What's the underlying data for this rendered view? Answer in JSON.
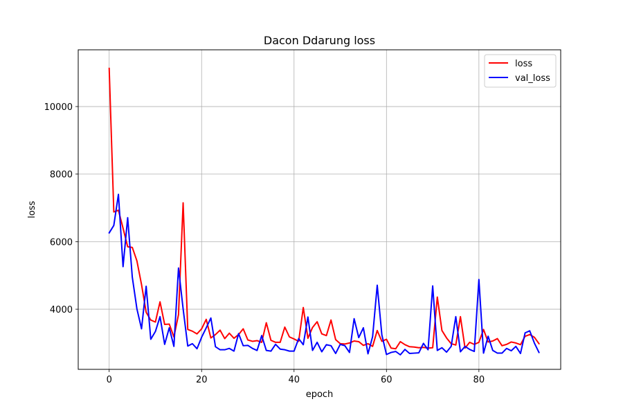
{
  "chart_data": {
    "type": "line",
    "title": "Dacon Ddarung loss",
    "xlabel": "epoch",
    "ylabel": "loss",
    "xlim": [
      -6.7,
      97.7
    ],
    "ylim": [
      2220,
      11680
    ],
    "xticks": [
      0,
      20,
      40,
      60,
      80
    ],
    "yticks": [
      4000,
      6000,
      8000,
      10000
    ],
    "grid": true,
    "legend_position": "top-right",
    "series": [
      {
        "name": "loss",
        "color": "#ff0000",
        "x": [
          0,
          1,
          2,
          3,
          4,
          5,
          6,
          7,
          8,
          9,
          10,
          11,
          12,
          13,
          14,
          15,
          16,
          17,
          18,
          19,
          20,
          21,
          22,
          23,
          24,
          25,
          26,
          27,
          28,
          29,
          30,
          31,
          32,
          33,
          34,
          35,
          36,
          37,
          38,
          39,
          40,
          41,
          42,
          43,
          44,
          45,
          46,
          47,
          48,
          49,
          50,
          51,
          52,
          53,
          54,
          55,
          56,
          57,
          58,
          59,
          60,
          61,
          62,
          63,
          64,
          65,
          66,
          67,
          68,
          69,
          70,
          71,
          72,
          73,
          74,
          75,
          76,
          77,
          78,
          79,
          80,
          81,
          82,
          83,
          84,
          85,
          86,
          87,
          88,
          89,
          90,
          91,
          92,
          93
        ],
        "values": [
          11130,
          6880,
          6930,
          6400,
          5850,
          5830,
          5430,
          4730,
          3910,
          3680,
          3620,
          4220,
          3550,
          3560,
          3180,
          3840,
          7150,
          3400,
          3350,
          3270,
          3420,
          3700,
          3150,
          3250,
          3380,
          3130,
          3290,
          3140,
          3250,
          3420,
          3090,
          3050,
          3070,
          3020,
          3600,
          3080,
          3020,
          3020,
          3470,
          3180,
          3120,
          3050,
          4050,
          3140,
          3460,
          3630,
          3270,
          3220,
          3680,
          3100,
          2980,
          2970,
          3000,
          3060,
          3040,
          2930,
          2980,
          2900,
          3370,
          3050,
          3110,
          2850,
          2830,
          3040,
          2950,
          2890,
          2880,
          2860,
          2870,
          2850,
          2860,
          4360,
          3370,
          3150,
          2980,
          2940,
          3780,
          2850,
          3020,
          2960,
          3020,
          3400,
          3030,
          3060,
          3130,
          2920,
          2960,
          3030,
          3000,
          2950,
          3200,
          3250,
          3170,
          2980
        ]
      },
      {
        "name": "val_loss",
        "color": "#0000ff",
        "x": [
          0,
          1,
          2,
          3,
          4,
          5,
          6,
          7,
          8,
          9,
          10,
          11,
          12,
          13,
          14,
          15,
          16,
          17,
          18,
          19,
          20,
          21,
          22,
          23,
          24,
          25,
          26,
          27,
          28,
          29,
          30,
          31,
          32,
          33,
          34,
          35,
          36,
          37,
          38,
          39,
          40,
          41,
          42,
          43,
          44,
          45,
          46,
          47,
          48,
          49,
          50,
          51,
          52,
          53,
          54,
          55,
          56,
          57,
          58,
          59,
          60,
          61,
          62,
          63,
          64,
          65,
          66,
          67,
          68,
          69,
          70,
          71,
          72,
          73,
          74,
          75,
          76,
          77,
          78,
          79,
          80,
          81,
          82,
          83,
          84,
          85,
          86,
          87,
          88,
          89,
          90,
          91,
          92,
          93
        ],
        "values": [
          6260,
          6480,
          7400,
          5260,
          6710,
          4950,
          4010,
          3420,
          4680,
          3110,
          3340,
          3780,
          2960,
          3450,
          2900,
          5220,
          4010,
          2910,
          2980,
          2830,
          3170,
          3450,
          3740,
          2890,
          2800,
          2800,
          2840,
          2760,
          3280,
          2920,
          2930,
          2840,
          2780,
          3220,
          2780,
          2760,
          2960,
          2820,
          2800,
          2760,
          2760,
          3130,
          2950,
          3770,
          2780,
          3020,
          2740,
          2950,
          2920,
          2690,
          2960,
          2920,
          2720,
          3720,
          3160,
          3450,
          2680,
          3190,
          4710,
          3240,
          2660,
          2720,
          2750,
          2650,
          2810,
          2690,
          2700,
          2710,
          2990,
          2800,
          4690,
          2780,
          2860,
          2730,
          2900,
          3780,
          2740,
          2900,
          2810,
          2750,
          4880,
          2700,
          3200,
          2780,
          2700,
          2700,
          2840,
          2770,
          2900,
          2690,
          3300,
          3360,
          3000,
          2720
        ]
      }
    ]
  }
}
